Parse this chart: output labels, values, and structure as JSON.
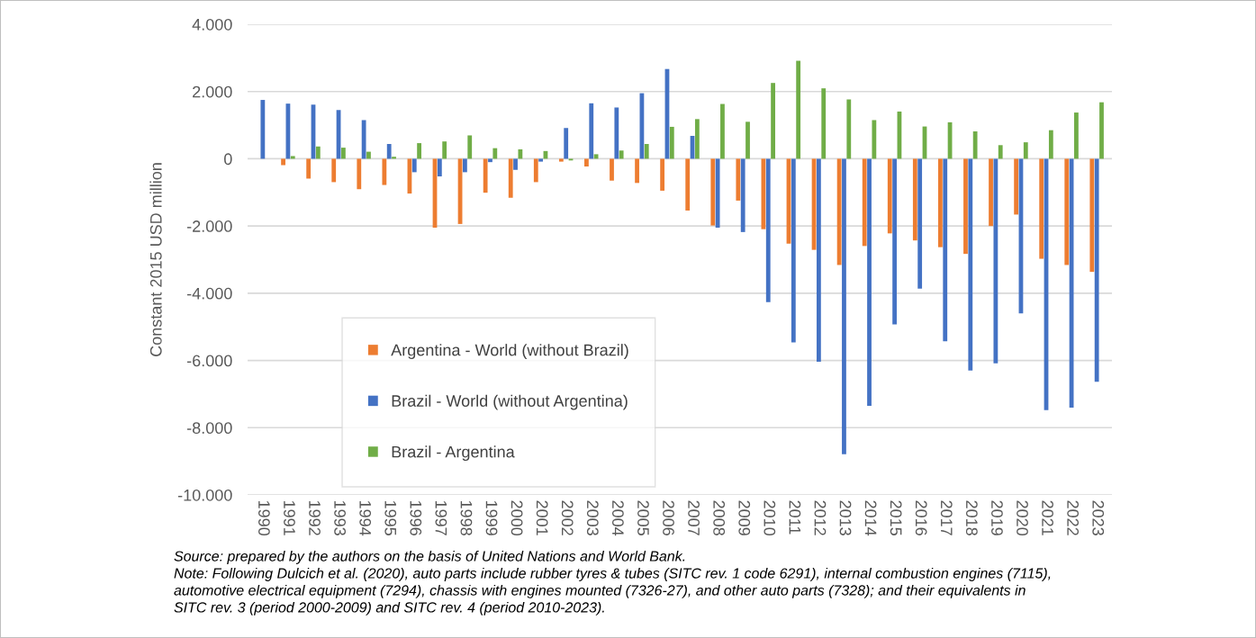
{
  "chart_data": {
    "type": "bar",
    "ylabel": "Constant 2015 USD million",
    "categories": [
      "1990",
      "1991",
      "1992",
      "1993",
      "1994",
      "1995",
      "1996",
      "1997",
      "1998",
      "1999",
      "2000",
      "2001",
      "2002",
      "2003",
      "2004",
      "2005",
      "2006",
      "2007",
      "2008",
      "2009",
      "2010",
      "2011",
      "2012",
      "2013",
      "2014",
      "2015",
      "2016",
      "2017",
      "2018",
      "2019",
      "2020",
      "2021",
      "2022",
      "2023"
    ],
    "series": [
      {
        "name": "Argentina - World (without Brazil)",
        "color": "#ed7d31",
        "values": [
          0,
          -190,
          -590,
          -695,
          -905,
          -780,
          -1035,
          -2050,
          -1940,
          -1010,
          -1160,
          -695,
          -85,
          -230,
          -650,
          -720,
          -950,
          -1540,
          -1985,
          -1245,
          -2095,
          -2525,
          -2710,
          -3160,
          -2595,
          -2220,
          -2430,
          -2630,
          -2830,
          -2000,
          -1660,
          -2975,
          -3160,
          -3365
        ]
      },
      {
        "name": "Brazil - World (without Argentina)",
        "color": "#4472c4",
        "values": [
          1750,
          1640,
          1610,
          1450,
          1150,
          440,
          -400,
          -525,
          -400,
          -100,
          -330,
          -85,
          915,
          1650,
          1525,
          1950,
          2670,
          680,
          -2050,
          -2180,
          -4265,
          -5465,
          -6040,
          -8790,
          -7350,
          -4930,
          -3865,
          -5430,
          -6300,
          -6085,
          -4600,
          -7475,
          -7405,
          -6635
        ]
      },
      {
        "name": "Brazil - Argentina",
        "color": "#70ad47",
        "values": [
          0,
          80,
          365,
          330,
          210,
          60,
          465,
          515,
          695,
          315,
          280,
          230,
          -50,
          135,
          245,
          440,
          950,
          1180,
          1630,
          1100,
          2255,
          2915,
          2095,
          1765,
          1150,
          1405,
          960,
          1085,
          815,
          405,
          490,
          850,
          1375,
          1680
        ]
      }
    ],
    "ylim": [
      -10000,
      4000
    ],
    "yticks": [
      {
        "value": -10000,
        "label": "-10.000"
      },
      {
        "value": -8000,
        "label": "-8.000"
      },
      {
        "value": -6000,
        "label": "-6.000"
      },
      {
        "value": -4000,
        "label": "-4.000"
      },
      {
        "value": -2000,
        "label": "-2.000"
      },
      0,
      {
        "value": 2000,
        "label": "2.000"
      },
      {
        "value": 4000,
        "label": "4.000"
      }
    ],
    "grid": "y",
    "legend": "bottom left",
    "annotations": [
      "Source: prepared by the authors on the basis of United Nations and World Bank.",
      "Note: Following Dulcich et al. (2020), auto parts include rubber tyres & tubes (SITC rev. 1 code 6291), internal combustion engines (7115),\nautomotive electrical equipment (7294), chassis with engines mounted (7326-27), and other auto parts (7328); and their equivalents in\nSITC rev. 3 (period 2000-2009) and SITC rev. 4 (period 2010-2023)."
    ]
  }
}
